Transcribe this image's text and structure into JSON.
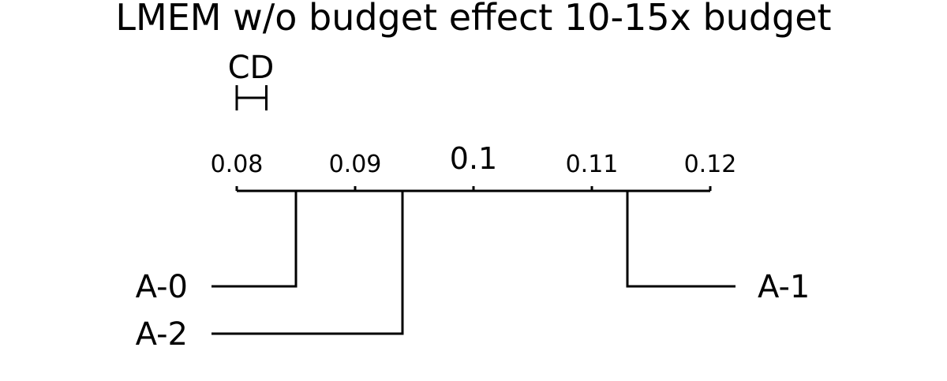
{
  "chart_data": {
    "type": "critical-difference",
    "title": "LMEM w/o budget effect 10-15x budget",
    "cd_label": "CD",
    "cd_value": 0.0025,
    "axis": {
      "range": [
        0.08,
        0.12
      ],
      "ticks": [
        0.08,
        0.09,
        0.1,
        0.11,
        0.12
      ],
      "tick_labels": [
        "0.08",
        "0.09",
        "0.1",
        "0.11",
        "0.12"
      ]
    },
    "methods": [
      {
        "name": "A-0",
        "value": 0.085,
        "side": "left"
      },
      {
        "name": "A-2",
        "value": 0.094,
        "side": "left"
      },
      {
        "name": "A-1",
        "value": 0.113,
        "side": "right"
      }
    ]
  }
}
